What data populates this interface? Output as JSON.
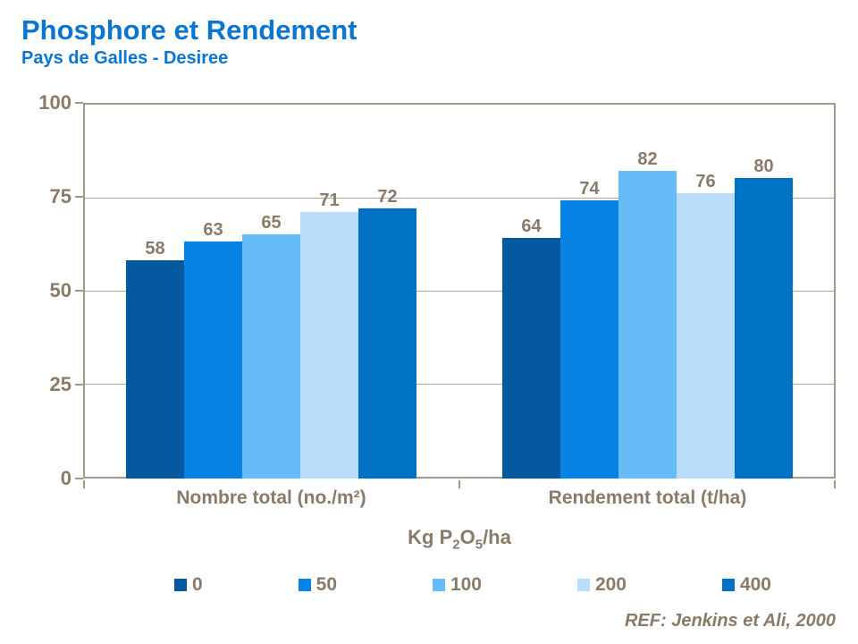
{
  "header": {
    "title": "Phosphore et Rendement",
    "subtitle": "Pays de Galles - Desiree"
  },
  "colors": {
    "title_blue": "#0b76d1",
    "text_brown": "#8a7a68",
    "frame_tan": "#a39889"
  },
  "chart_data": {
    "type": "bar",
    "title": "Phosphore et Rendement",
    "subtitle": "Pays de Galles - Desiree",
    "categories": [
      "Nombre total (no./m²)",
      "Rendement total (t/ha)"
    ],
    "series": [
      {
        "name": "0",
        "color": "#055a9f",
        "values": [
          58,
          64
        ]
      },
      {
        "name": "50",
        "color": "#0783e6",
        "values": [
          63,
          74
        ]
      },
      {
        "name": "100",
        "color": "#66bbf9",
        "values": [
          65,
          82
        ]
      },
      {
        "name": "200",
        "color": "#baddfb",
        "values": [
          71,
          76
        ]
      },
      {
        "name": "400",
        "color": "#0072c6",
        "values": [
          72,
          80
        ]
      }
    ],
    "ylim": [
      0,
      100
    ],
    "yticks": [
      0,
      25,
      50,
      75,
      100
    ],
    "grid": true,
    "legend_position": "bottom",
    "legend_title_text": "Kg P2O5/ha"
  },
  "legend_title": {
    "prefix": "Kg P",
    "sub_a": "2",
    "mid": "O",
    "sub_b": "5",
    "suffix": "/ha"
  },
  "footer": {
    "ref": "REF: Jenkins et Ali, 2000"
  }
}
